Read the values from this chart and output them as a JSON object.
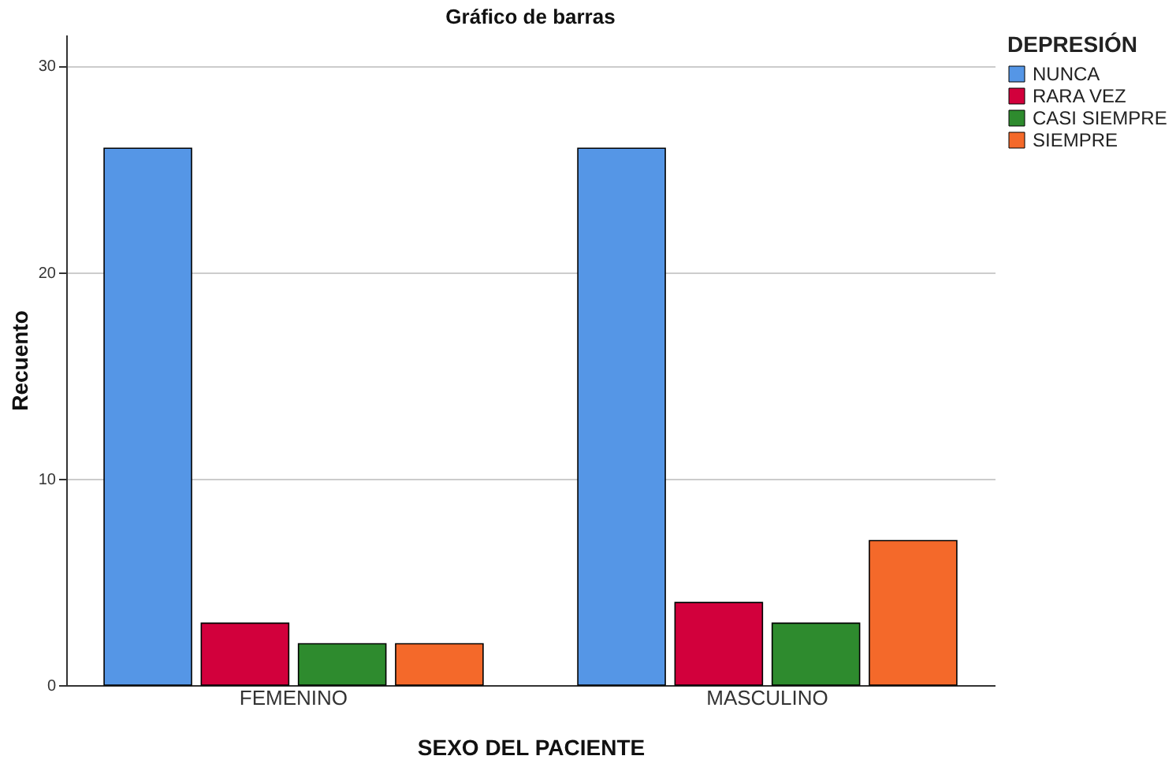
{
  "chart_data": {
    "type": "bar",
    "title": "Gráfico de barras",
    "xlabel": "SEXO DEL PACIENTE",
    "ylabel": "Recuento",
    "legend_title": "DEPRESIÓN",
    "categories": [
      "FEMENINO",
      "MASCULINO"
    ],
    "series": [
      {
        "name": "NUNCA",
        "color": "#5596e6",
        "values": [
          26,
          26
        ]
      },
      {
        "name": "RARA VEZ",
        "color": "#d2003c",
        "values": [
          3,
          4
        ]
      },
      {
        "name": "CASI SIEMPRE",
        "color": "#2e8b2e",
        "values": [
          2,
          3
        ]
      },
      {
        "name": "SIEMPRE",
        "color": "#f4692a",
        "values": [
          2,
          7
        ]
      }
    ],
    "ylim": [
      0,
      31.5
    ],
    "yticks": [
      0,
      10,
      20,
      30
    ],
    "grid": "y",
    "legend": "top right"
  }
}
